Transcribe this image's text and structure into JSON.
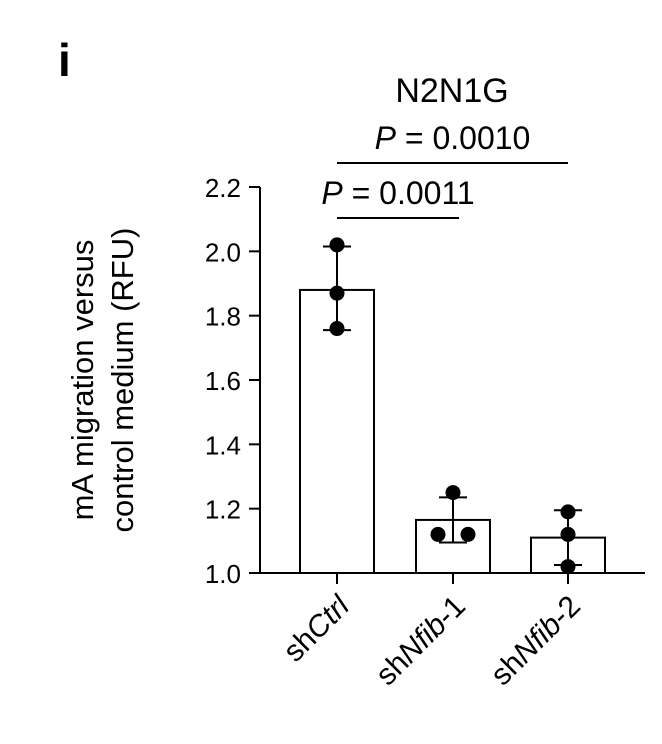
{
  "panel_label": "i",
  "chart_data": {
    "type": "bar",
    "title": "N2N1G",
    "ylabel_line1": "mA migration versus",
    "ylabel_line2": "control medium (RFU)",
    "xlabel": "",
    "categories": [
      {
        "prefix": "sh",
        "italic": "Ctrl",
        "suffix": ""
      },
      {
        "prefix": "sh",
        "italic": "Nfib",
        "suffix": "-1"
      },
      {
        "prefix": "sh",
        "italic": "Nfib",
        "suffix": "-2"
      }
    ],
    "values": [
      1.88,
      1.165,
      1.11
    ],
    "error_low": [
      1.755,
      1.095,
      1.025
    ],
    "error_high": [
      2.015,
      1.235,
      1.195
    ],
    "points": [
      [
        2.02,
        1.87,
        1.76
      ],
      [
        1.25,
        1.12,
        1.12
      ],
      [
        1.19,
        1.12,
        1.02
      ]
    ],
    "ylim": [
      1.0,
      2.2
    ],
    "yticks": [
      "1.0",
      "1.2",
      "1.4",
      "1.6",
      "1.8",
      "2.0",
      "2.2"
    ],
    "significance": [
      {
        "from": 0,
        "to": 1,
        "p_label": "P",
        "p_value": " = 0.0011"
      },
      {
        "from": 0,
        "to": 2,
        "p_label": "P",
        "p_value": " = 0.0010"
      }
    ],
    "bar_fill": "#ffffff",
    "bar_stroke": "#000000",
    "point_color": "#000000"
  }
}
